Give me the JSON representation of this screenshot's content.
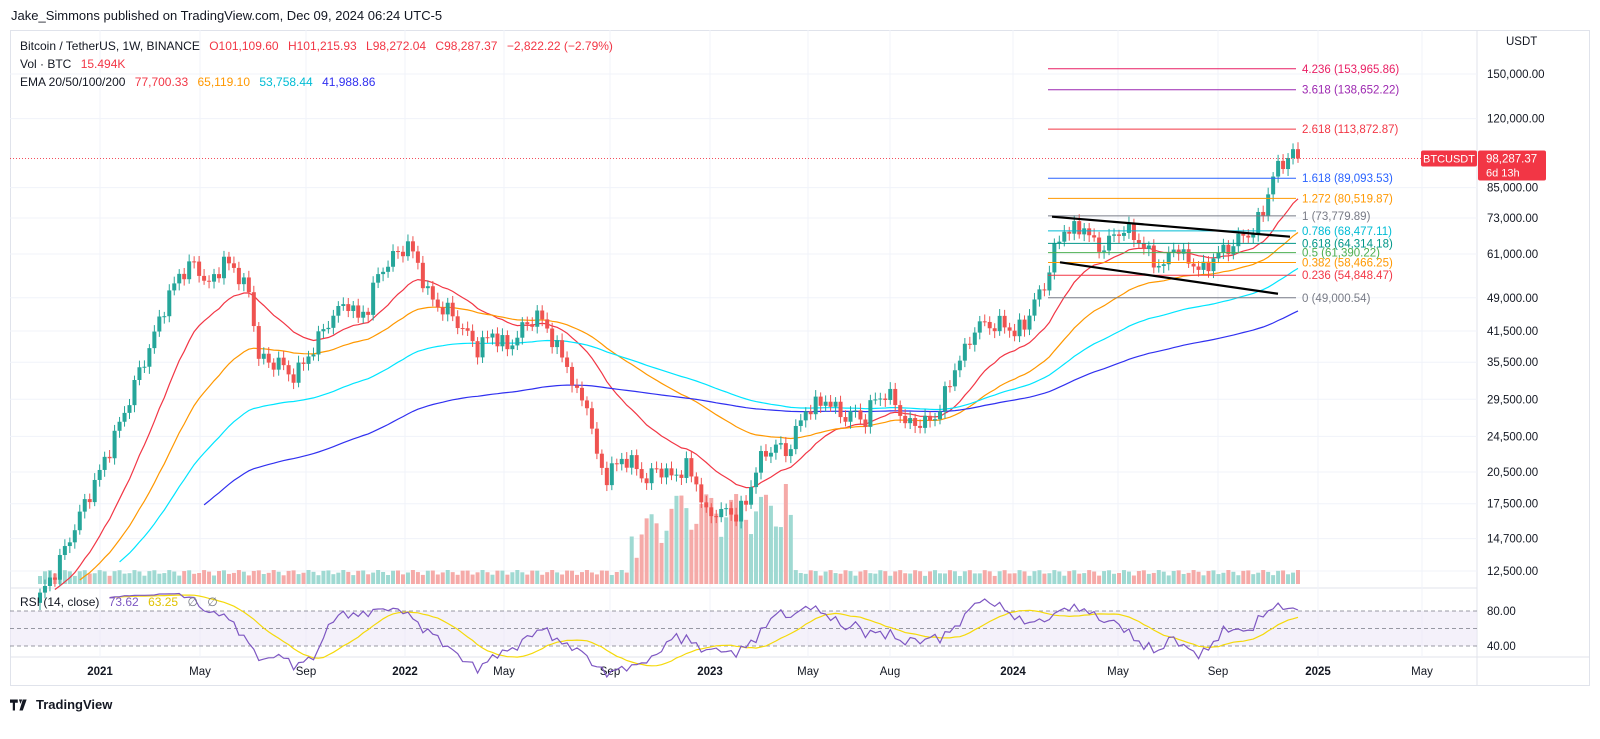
{
  "caption": "Jake_Simmons published on TradingView.com, Dec 09, 2024 06:24 UTC-5",
  "legend": {
    "symbol": "Bitcoin / TetherUS, 1W, BINANCE",
    "open": "O101,109.60",
    "high": "H101,215.93",
    "low": "L98,272.04",
    "close": "C98,287.37",
    "change": "−2,822.22 (−2.79%)",
    "vol_label": "Vol · BTC",
    "vol_value": "15.494K",
    "ema_label": "EMA 20/50/100/200",
    "ema_values": [
      "77,700.33",
      "65,119.10",
      "53,758.44",
      "41,988.86"
    ]
  },
  "unit": "USDT",
  "last_price_tag": {
    "symbol": "BTCUSDT",
    "price": "98,287.37",
    "countdown": "6d 13h"
  },
  "rsi_legend": {
    "label": "RSI (14, close)",
    "value": "73.62",
    "ma": "63.25",
    "extra": [
      "∅",
      "∅"
    ]
  },
  "rsi_levels": [
    "80.00",
    "40.00"
  ],
  "footer": {
    "brand": "TradingView"
  },
  "colors": {
    "up": "#26a69a",
    "down": "#ef5350",
    "ema20": "#f23645",
    "ema50": "#ff9800",
    "ema100": "#00e5ff",
    "ema200": "#3030f0",
    "rsi": "#7e57c2",
    "rsi_ma": "#f5d90a"
  },
  "chart_data": {
    "type": "candlestick",
    "title": "Bitcoin / TetherUS, 1W, BINANCE",
    "y_axis_ticks": [
      150000,
      120000,
      98287.37,
      85000,
      73000,
      61000,
      49000,
      41500,
      35500,
      29500,
      24500,
      20500,
      17500,
      14700,
      12500
    ],
    "y_axis_labels": [
      "150,000.00",
      "120,000.00",
      "85,000.00",
      "73,000.00",
      "61,000.00",
      "49,000.00",
      "41,500.00",
      "35,500.00",
      "29,500.00",
      "24,500.00",
      "20,500.00",
      "17,500.00",
      "14,700.00",
      "12,500.00"
    ],
    "y_scale": "log",
    "x_axis_labels": [
      "2021",
      "May",
      "Sep",
      "2022",
      "May",
      "Sep",
      "2023",
      "May",
      "Aug",
      "2024",
      "May",
      "Sep",
      "2025",
      "May"
    ],
    "fibonacci": [
      {
        "level": "4.236",
        "price": 153965.86,
        "label": "4.236 (153,965.86)",
        "color": "#e91e63"
      },
      {
        "level": "3.618",
        "price": 138652.22,
        "label": "3.618 (138,652.22)",
        "color": "#9c27b0"
      },
      {
        "level": "2.618",
        "price": 113872.87,
        "label": "2.618 (113,872.87)",
        "color": "#f23645"
      },
      {
        "level": "1.618",
        "price": 89093.53,
        "label": "1.618 (89,093.53)",
        "color": "#2962ff"
      },
      {
        "level": "1.272",
        "price": 80519.87,
        "label": "1.272 (80,519.87)",
        "color": "#ff9800"
      },
      {
        "level": "1",
        "price": 73779.89,
        "label": "1 (73,779.89)",
        "color": "#787b86"
      },
      {
        "level": "0.786",
        "price": 68477.11,
        "label": "0.786 (68,477.11)",
        "color": "#00bcd4"
      },
      {
        "level": "0.618",
        "price": 64314.18,
        "label": "0.618 (64,314.18)",
        "color": "#009688"
      },
      {
        "level": "0.5",
        "price": 61390.22,
        "label": "0.5 (61,390.22)",
        "color": "#4caf50"
      },
      {
        "level": "0.382",
        "price": 58466.25,
        "label": "0.382 (58,466.25)",
        "color": "#ff9800"
      },
      {
        "level": "0.236",
        "price": 54848.47,
        "label": "0.236 (54,848.47)",
        "color": "#f23645"
      },
      {
        "level": "0",
        "price": 49000.54,
        "label": "0 (49,000.54)",
        "color": "#787b86"
      }
    ],
    "series": [
      {
        "name": "EMA 20",
        "last": 77700.33
      },
      {
        "name": "EMA 50",
        "last": 65119.1
      },
      {
        "name": "EMA 100",
        "last": 53758.44
      },
      {
        "name": "EMA 200",
        "last": 41988.86
      }
    ],
    "price_path": [
      [
        0,
        11000
      ],
      [
        3,
        12500
      ],
      [
        6,
        14700
      ],
      [
        9,
        17500
      ],
      [
        12,
        20500
      ],
      [
        15,
        24500
      ],
      [
        18,
        29500
      ],
      [
        20,
        34000
      ],
      [
        22,
        38000
      ],
      [
        25,
        47000
      ],
      [
        28,
        55000
      ],
      [
        31,
        58000
      ],
      [
        34,
        52000
      ],
      [
        37,
        59000
      ],
      [
        40,
        55000
      ],
      [
        42,
        50000
      ],
      [
        44,
        37000
      ],
      [
        46,
        35000
      ],
      [
        48,
        36000
      ],
      [
        50,
        33000
      ],
      [
        53,
        35000
      ],
      [
        56,
        40000
      ],
      [
        59,
        45000
      ],
      [
        62,
        48000
      ],
      [
        64,
        44000
      ],
      [
        66,
        47000
      ],
      [
        68,
        55000
      ],
      [
        71,
        60000
      ],
      [
        74,
        64000
      ],
      [
        76,
        58000
      ],
      [
        78,
        50000
      ],
      [
        80,
        47000
      ],
      [
        82,
        46000
      ],
      [
        85,
        42000
      ],
      [
        88,
        38000
      ],
      [
        91,
        41000
      ],
      [
        94,
        38000
      ],
      [
        97,
        42000
      ],
      [
        100,
        45000
      ],
      [
        102,
        42000
      ],
      [
        104,
        38000
      ],
      [
        106,
        35000
      ],
      [
        108,
        30000
      ],
      [
        110,
        29000
      ],
      [
        112,
        22000
      ],
      [
        114,
        20000
      ],
      [
        117,
        22000
      ],
      [
        120,
        21000
      ],
      [
        122,
        19500
      ],
      [
        124,
        21000
      ],
      [
        127,
        20000
      ],
      [
        130,
        21000
      ],
      [
        132,
        19500
      ],
      [
        134,
        16500
      ],
      [
        136,
        16800
      ],
      [
        138,
        16800
      ],
      [
        140,
        16600
      ],
      [
        142,
        17500
      ],
      [
        144,
        21000
      ],
      [
        146,
        22500
      ],
      [
        148,
        23500
      ],
      [
        150,
        22500
      ],
      [
        152,
        25000
      ],
      [
        154,
        28000
      ],
      [
        156,
        28500
      ],
      [
        158,
        29500
      ],
      [
        160,
        28000
      ],
      [
        162,
        27000
      ],
      [
        164,
        27500
      ],
      [
        166,
        26500
      ],
      [
        168,
        29800
      ],
      [
        170,
        30000
      ],
      [
        172,
        29300
      ],
      [
        174,
        26000
      ],
      [
        176,
        26300
      ],
      [
        178,
        26200
      ],
      [
        180,
        27000
      ],
      [
        182,
        30000
      ],
      [
        184,
        34500
      ],
      [
        186,
        37500
      ],
      [
        188,
        42000
      ],
      [
        190,
        43000
      ],
      [
        192,
        42500
      ],
      [
        194,
        43000
      ],
      [
        196,
        41000
      ],
      [
        198,
        43000
      ],
      [
        200,
        48000
      ],
      [
        202,
        52000
      ],
      [
        204,
        62000
      ],
      [
        206,
        69000
      ],
      [
        208,
        68500
      ],
      [
        210,
        70000
      ],
      [
        212,
        64000
      ],
      [
        214,
        63000
      ],
      [
        216,
        67000
      ],
      [
        218,
        69000
      ],
      [
        220,
        67000
      ],
      [
        222,
        63000
      ],
      [
        224,
        59000
      ],
      [
        226,
        57000
      ],
      [
        228,
        64000
      ],
      [
        230,
        60000
      ],
      [
        232,
        58000
      ],
      [
        234,
        56000
      ],
      [
        236,
        60000
      ],
      [
        238,
        62000
      ],
      [
        240,
        64000
      ],
      [
        242,
        67000
      ],
      [
        244,
        68000
      ],
      [
        246,
        76000
      ],
      [
        248,
        90000
      ],
      [
        250,
        97000
      ],
      [
        252,
        101000
      ],
      [
        253,
        98287
      ]
    ]
  }
}
